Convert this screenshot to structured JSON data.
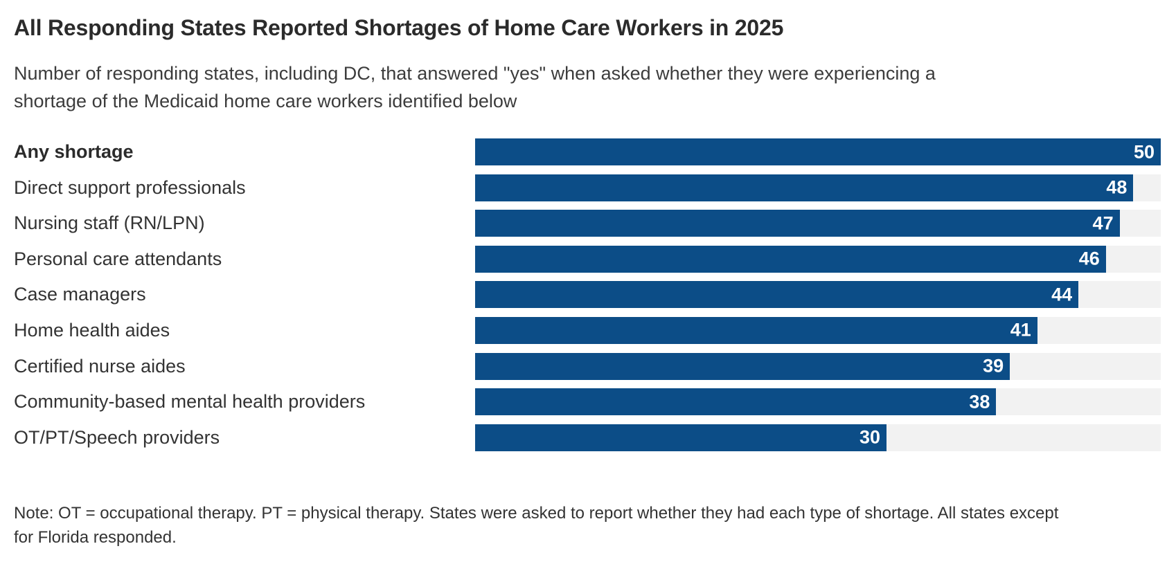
{
  "header": {
    "title": "All Responding States Reported Shortages of Home Care Workers in 2025",
    "subtitle_lines": [
      "Number of responding states, including DC, that answered \"yes\" when asked whether they were experiencing a",
      "shortage of the Medicaid home care workers identified below"
    ]
  },
  "footer": {
    "note_lines": [
      "Note: OT = occupational therapy. PT = physical therapy. States were asked to report whether they had each type of shortage. All states except",
      "for Florida responded."
    ]
  },
  "chart_data": {
    "type": "bar",
    "orientation": "horizontal",
    "title": "All Responding States Reported Shortages of Home Care Workers in 2025",
    "subtitle": "Number of responding states, including DC, that answered \"yes\" when asked whether they were experiencing a shortage of the Medicaid home care workers identified below",
    "note": "Note: OT = occupational therapy. PT = physical therapy. States were asked to report whether they had each type of shortage. All states except for Florida responded.",
    "categories": [
      "Any shortage",
      "Direct support professionals",
      "Nursing staff (RN/LPN)",
      "Personal care attendants",
      "Case managers",
      "Home health aides",
      "Certified nurse aides",
      "Community-based mental health providers",
      "OT/PT/Speech providers"
    ],
    "values": [
      50,
      48,
      47,
      46,
      44,
      41,
      39,
      38,
      30
    ],
    "xlim": [
      0,
      50
    ],
    "value_label_position": "inside-end",
    "emphasized_category_index": 0,
    "grid": false,
    "legend": false,
    "colors": {
      "bar": "#0c4d87",
      "track": "#f2f2f2",
      "value_text": "#ffffff",
      "title_text": "#2b2b2b",
      "body_text": "#333333"
    }
  }
}
